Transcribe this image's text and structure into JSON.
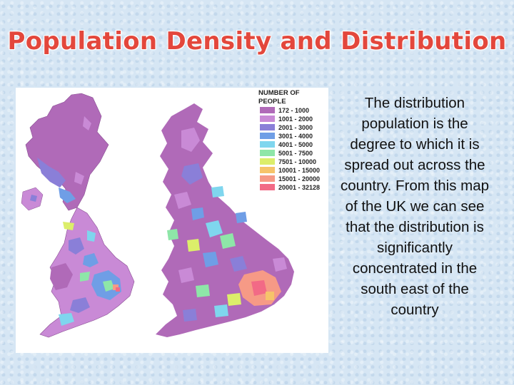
{
  "slide": {
    "title": "Population Density and Distribution",
    "body": "The distribution population is the degree to which it is spread out across the country. From this map of the UK we can see that the distribution is significantly concentrated in the south east of the country"
  },
  "legend": {
    "title": "NUMBER OF PEOPLE",
    "items": [
      {
        "label": "172 - 1000",
        "color": "#b06ab8"
      },
      {
        "label": "1001 - 2000",
        "color": "#c98ad6"
      },
      {
        "label": "2001 - 3000",
        "color": "#8a7fd8"
      },
      {
        "label": "3001 - 4000",
        "color": "#6f9ee6"
      },
      {
        "label": "4001 - 5000",
        "color": "#7fd6ee"
      },
      {
        "label": "5001 - 7500",
        "color": "#8ee6a8"
      },
      {
        "label": "7501 - 10000",
        "color": "#dcee6a"
      },
      {
        "label": "10001 - 15000",
        "color": "#f6c46a"
      },
      {
        "label": "15001 - 20000",
        "color": "#f69a86"
      },
      {
        "label": "20001 - 32128",
        "color": "#f26a86"
      }
    ]
  }
}
